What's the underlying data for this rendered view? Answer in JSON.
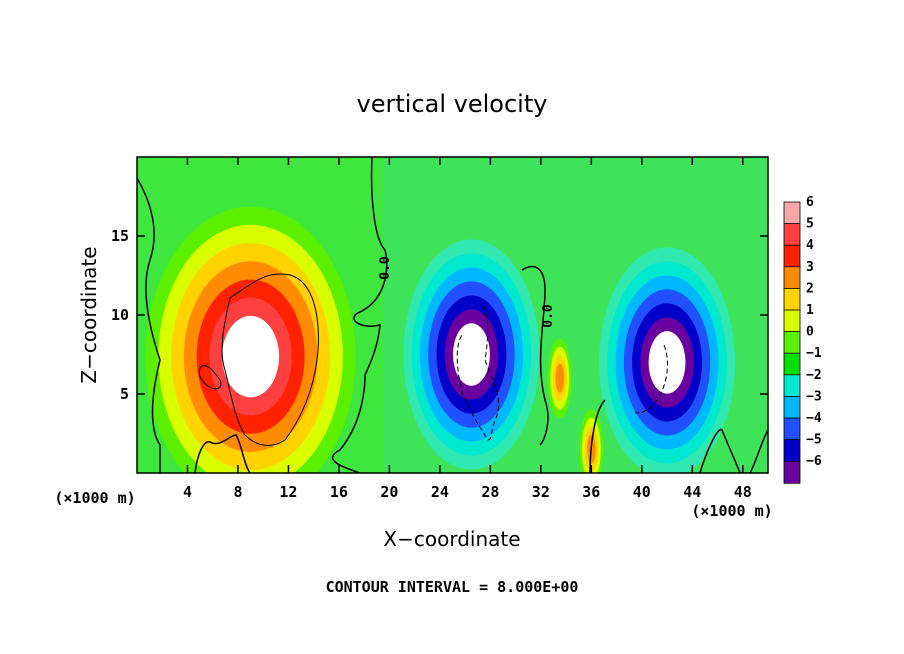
{
  "chart_data": {
    "type": "heatmap",
    "title": "vertical velocity",
    "xlabel": "X−coordinate",
    "ylabel": "Z−coordinate",
    "x_unit_label": "(×1000 m)",
    "z_unit_label": "(×1000 m)",
    "xlim": [
      0,
      50
    ],
    "ylim": [
      0,
      20
    ],
    "x_ticks": [
      4,
      8,
      12,
      16,
      20,
      24,
      28,
      32,
      36,
      40,
      44,
      48
    ],
    "y_ticks": [
      5,
      10,
      15
    ],
    "colorbar": {
      "levels": [
        6,
        5,
        4,
        3,
        2,
        1,
        0,
        -1,
        -2,
        -3,
        -4,
        -5,
        -6
      ],
      "labels": [
        "6",
        "5",
        "4",
        "3",
        "2",
        "1",
        "0",
        "−1",
        "−2",
        "−3",
        "−4",
        "−5",
        "−6"
      ],
      "colors": [
        "#f6a6a6",
        "#ff4040",
        "#ff2200",
        "#ff8c00",
        "#ffd200",
        "#d7ff00",
        "#5cf000",
        "#00e000",
        "#00e8d0",
        "#00b8ff",
        "#2050ff",
        "#0000c8",
        "#6a00a0"
      ]
    },
    "contour_interval_label": "CONTOUR INTERVAL = 8.000E+00",
    "contour_label": "0.0",
    "features": [
      {
        "name": "updraft core",
        "x_center": 9,
        "z_center": 8,
        "w": 6
      },
      {
        "name": "downdraft core",
        "x_center": 26.5,
        "z_center": 7.5,
        "w": -6
      },
      {
        "name": "downdraft core",
        "x_center": 42,
        "z_center": 7,
        "w": -6
      },
      {
        "name": "weak updraft",
        "x_center": 33.5,
        "z_center": 6,
        "w": 4
      },
      {
        "name": "weak updraft",
        "x_center": 36,
        "z_center": 1.5,
        "w": 5
      }
    ]
  }
}
